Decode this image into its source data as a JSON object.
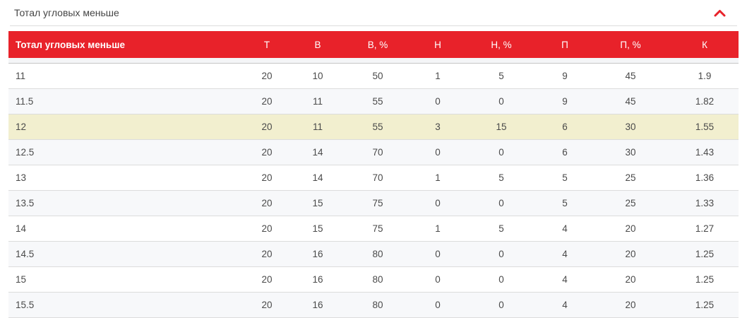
{
  "panel": {
    "title": "Тотал угловых меньше",
    "collapse_icon": "chevron-up-icon"
  },
  "colors": {
    "accent_red": "#e8222a",
    "highlight_row": "#f2efcf",
    "alt_row": "#f7f8fa",
    "header_text": "#ffffff",
    "body_text": "#4a4a4a"
  },
  "table": {
    "headers": [
      "Тотал угловых меньше",
      "Т",
      "В",
      "В, %",
      "Н",
      "Н, %",
      "П",
      "П, %",
      "К"
    ],
    "column_keys": [
      "label",
      "t",
      "v",
      "v_pct",
      "n",
      "n_pct",
      "p",
      "p_pct",
      "k"
    ],
    "rows": [
      {
        "label": "11",
        "t": "20",
        "v": "10",
        "v_pct": "50",
        "n": "1",
        "n_pct": "5",
        "p": "9",
        "p_pct": "45",
        "k": "1.9",
        "highlighted": false
      },
      {
        "label": "11.5",
        "t": "20",
        "v": "11",
        "v_pct": "55",
        "n": "0",
        "n_pct": "0",
        "p": "9",
        "p_pct": "45",
        "k": "1.82",
        "highlighted": false
      },
      {
        "label": "12",
        "t": "20",
        "v": "11",
        "v_pct": "55",
        "n": "3",
        "n_pct": "15",
        "p": "6",
        "p_pct": "30",
        "k": "1.55",
        "highlighted": true
      },
      {
        "label": "12.5",
        "t": "20",
        "v": "14",
        "v_pct": "70",
        "n": "0",
        "n_pct": "0",
        "p": "6",
        "p_pct": "30",
        "k": "1.43",
        "highlighted": false
      },
      {
        "label": "13",
        "t": "20",
        "v": "14",
        "v_pct": "70",
        "n": "1",
        "n_pct": "5",
        "p": "5",
        "p_pct": "25",
        "k": "1.36",
        "highlighted": false
      },
      {
        "label": "13.5",
        "t": "20",
        "v": "15",
        "v_pct": "75",
        "n": "0",
        "n_pct": "0",
        "p": "5",
        "p_pct": "25",
        "k": "1.33",
        "highlighted": false
      },
      {
        "label": "14",
        "t": "20",
        "v": "15",
        "v_pct": "75",
        "n": "1",
        "n_pct": "5",
        "p": "4",
        "p_pct": "20",
        "k": "1.27",
        "highlighted": false
      },
      {
        "label": "14.5",
        "t": "20",
        "v": "16",
        "v_pct": "80",
        "n": "0",
        "n_pct": "0",
        "p": "4",
        "p_pct": "20",
        "k": "1.25",
        "highlighted": false
      },
      {
        "label": "15",
        "t": "20",
        "v": "16",
        "v_pct": "80",
        "n": "0",
        "n_pct": "0",
        "p": "4",
        "p_pct": "20",
        "k": "1.25",
        "highlighted": false
      },
      {
        "label": "15.5",
        "t": "20",
        "v": "16",
        "v_pct": "80",
        "n": "0",
        "n_pct": "0",
        "p": "4",
        "p_pct": "20",
        "k": "1.25",
        "highlighted": false
      }
    ]
  }
}
